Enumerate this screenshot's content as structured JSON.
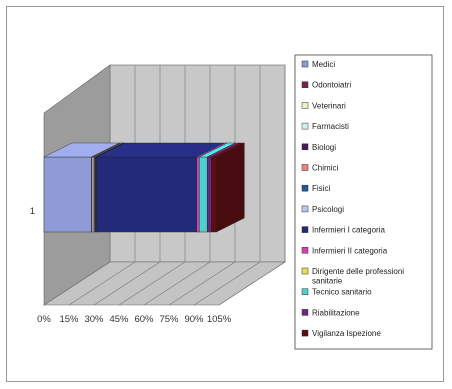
{
  "chart_data": {
    "type": "bar",
    "stacked": "100%",
    "orientation": "horizontal",
    "three_d": true,
    "title": "",
    "xlabel": "",
    "ylabel": "",
    "categories": [
      "1"
    ],
    "x_ticks": [
      "0%",
      "15%",
      "30%",
      "45%",
      "60%",
      "75%",
      "90%",
      "105%"
    ],
    "xlim": [
      0,
      105
    ],
    "grid": true,
    "legend_position": "right",
    "series": [
      {
        "name": "Medici",
        "values": [
          28.5
        ],
        "color": "#8f9bd6"
      },
      {
        "name": "Odontoiatri",
        "values": [
          0.4
        ],
        "color": "#7a2050"
      },
      {
        "name": "Veterinari",
        "values": [
          0.7
        ],
        "color": "#f3f0c4"
      },
      {
        "name": "Farmacisti",
        "values": [
          0.7
        ],
        "color": "#d4f1f1"
      },
      {
        "name": "Biologi",
        "values": [
          0.7
        ],
        "color": "#4a1a58"
      },
      {
        "name": "Chimici",
        "values": [
          0.2
        ],
        "color": "#ef8080"
      },
      {
        "name": "Fisici",
        "values": [
          0.2
        ],
        "color": "#1f5a9a"
      },
      {
        "name": "Psicologi",
        "values": [
          0.2
        ],
        "color": "#b8c8f0"
      },
      {
        "name": "Infermieri I categoria",
        "values": [
          60.0
        ],
        "color": "#232a7a"
      },
      {
        "name": "Infermieri II categoria",
        "values": [
          1.5
        ],
        "color": "#cc44b0"
      },
      {
        "name": "Dirigente delle professioni sanitarie",
        "values": [
          0.1
        ],
        "color": "#e8e050"
      },
      {
        "name": "Tecnico sanitario",
        "values": [
          4.7
        ],
        "color": "#4cd0d0"
      },
      {
        "name": "Riabilitazione",
        "values": [
          2.5
        ],
        "color": "#6a2a7a"
      },
      {
        "name": "Vigilanza Ispezione",
        "values": [
          3.0
        ],
        "color": "#5a0e14"
      }
    ]
  },
  "legend": {
    "items": [
      "Medici",
      "Odontoiatri",
      "Veterinari",
      "Farmacisti",
      "Biologi",
      "Chimici",
      "Fisici",
      "Psicologi",
      "Infermieri I categoria",
      "Infermieri II categoria",
      "Dirigente delle professioni sanitarie",
      "Tecnico sanitario",
      "Riabilitazione",
      "Vigilanza Ispezione"
    ]
  }
}
